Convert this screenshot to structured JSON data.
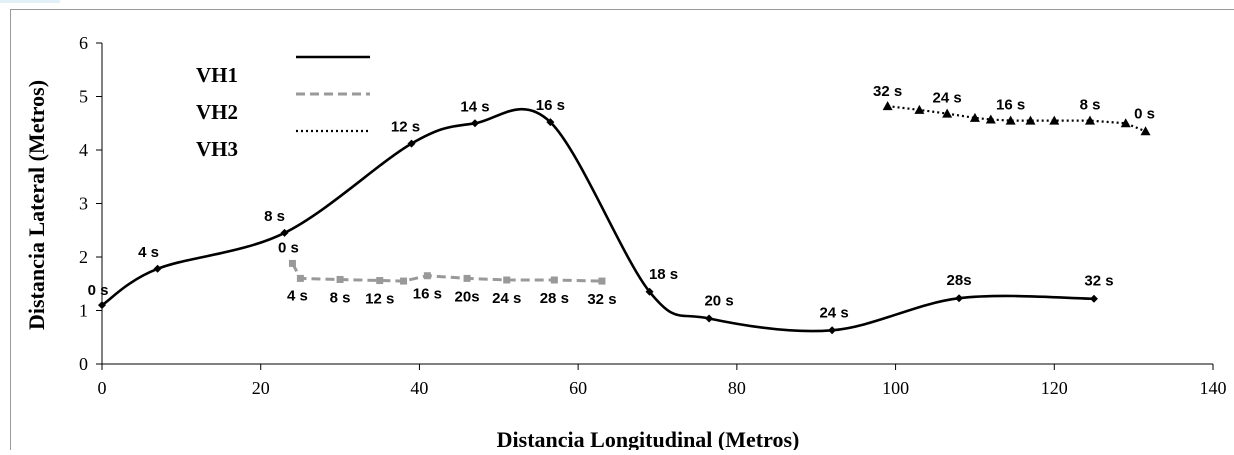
{
  "chart_data": {
    "type": "line",
    "title": "",
    "xlabel": "Distancia Longitudinal (Metros)",
    "ylabel": "Distancia Lateral (Metros)",
    "xlim": [
      0,
      140
    ],
    "ylim": [
      0,
      6
    ],
    "x_ticks": [
      0,
      20,
      40,
      60,
      80,
      100,
      120,
      140
    ],
    "y_ticks": [
      0,
      1,
      2,
      3,
      4,
      5,
      6
    ],
    "x_tick_labels": [
      "0",
      "20",
      "40",
      "60",
      "80",
      "100",
      "120",
      "140"
    ],
    "y_tick_labels": [
      "0",
      "1",
      "2",
      "3",
      "4",
      "5",
      "6"
    ],
    "grid": false,
    "legend_position": "top-left",
    "series": [
      {
        "name": "VH1",
        "style": "solid",
        "marker": "diamond",
        "color": "#000000",
        "smooth": true,
        "points": [
          {
            "x": 0,
            "y": 1.1,
            "label": "0 s"
          },
          {
            "x": 7,
            "y": 1.78,
            "label": "4 s"
          },
          {
            "x": 23,
            "y": 2.45,
            "label": "8 s"
          },
          {
            "x": 39,
            "y": 4.12,
            "label": "12 s"
          },
          {
            "x": 47,
            "y": 4.5,
            "label": "14 s"
          },
          {
            "x": 56.5,
            "y": 4.52,
            "label": "16 s"
          },
          {
            "x": 69,
            "y": 1.35,
            "label": "18 s"
          },
          {
            "x": 76.5,
            "y": 0.85,
            "label": "20 s"
          },
          {
            "x": 92,
            "y": 0.63,
            "label": "24 s"
          },
          {
            "x": 108,
            "y": 1.23,
            "label": "28s"
          },
          {
            "x": 125,
            "y": 1.22,
            "label": "32 s"
          }
        ]
      },
      {
        "name": "VH2",
        "style": "dashed",
        "marker": "square",
        "color": "#999999",
        "smooth": false,
        "points": [
          {
            "x": 24,
            "y": 1.88,
            "label": "0 s"
          },
          {
            "x": 25,
            "y": 1.6,
            "label": "4 s"
          },
          {
            "x": 30,
            "y": 1.58,
            "label": "8 s"
          },
          {
            "x": 35,
            "y": 1.56,
            "label": "12 s"
          },
          {
            "x": 38,
            "y": 1.55,
            "label": ""
          },
          {
            "x": 41,
            "y": 1.65,
            "label": "16 s"
          },
          {
            "x": 46,
            "y": 1.6,
            "label": "20s"
          },
          {
            "x": 51,
            "y": 1.57,
            "label": "24 s"
          },
          {
            "x": 57,
            "y": 1.57,
            "label": "28 s"
          },
          {
            "x": 63,
            "y": 1.55,
            "label": "32 s"
          }
        ]
      },
      {
        "name": "VH3",
        "style": "dotted",
        "marker": "triangle",
        "color": "#000000",
        "smooth": false,
        "points": [
          {
            "x": 99,
            "y": 4.82,
            "label": "32 s"
          },
          {
            "x": 103,
            "y": 4.75,
            "label": ""
          },
          {
            "x": 106.5,
            "y": 4.68,
            "label": "24 s"
          },
          {
            "x": 110,
            "y": 4.6,
            "label": ""
          },
          {
            "x": 112,
            "y": 4.57,
            "label": ""
          },
          {
            "x": 114.5,
            "y": 4.55,
            "label": "16 s"
          },
          {
            "x": 117,
            "y": 4.55,
            "label": ""
          },
          {
            "x": 120,
            "y": 4.55,
            "label": ""
          },
          {
            "x": 124.5,
            "y": 4.55,
            "label": "8 s"
          },
          {
            "x": 129,
            "y": 4.5,
            "label": ""
          },
          {
            "x": 131.5,
            "y": 4.35,
            "label": "0 s"
          }
        ]
      }
    ]
  }
}
